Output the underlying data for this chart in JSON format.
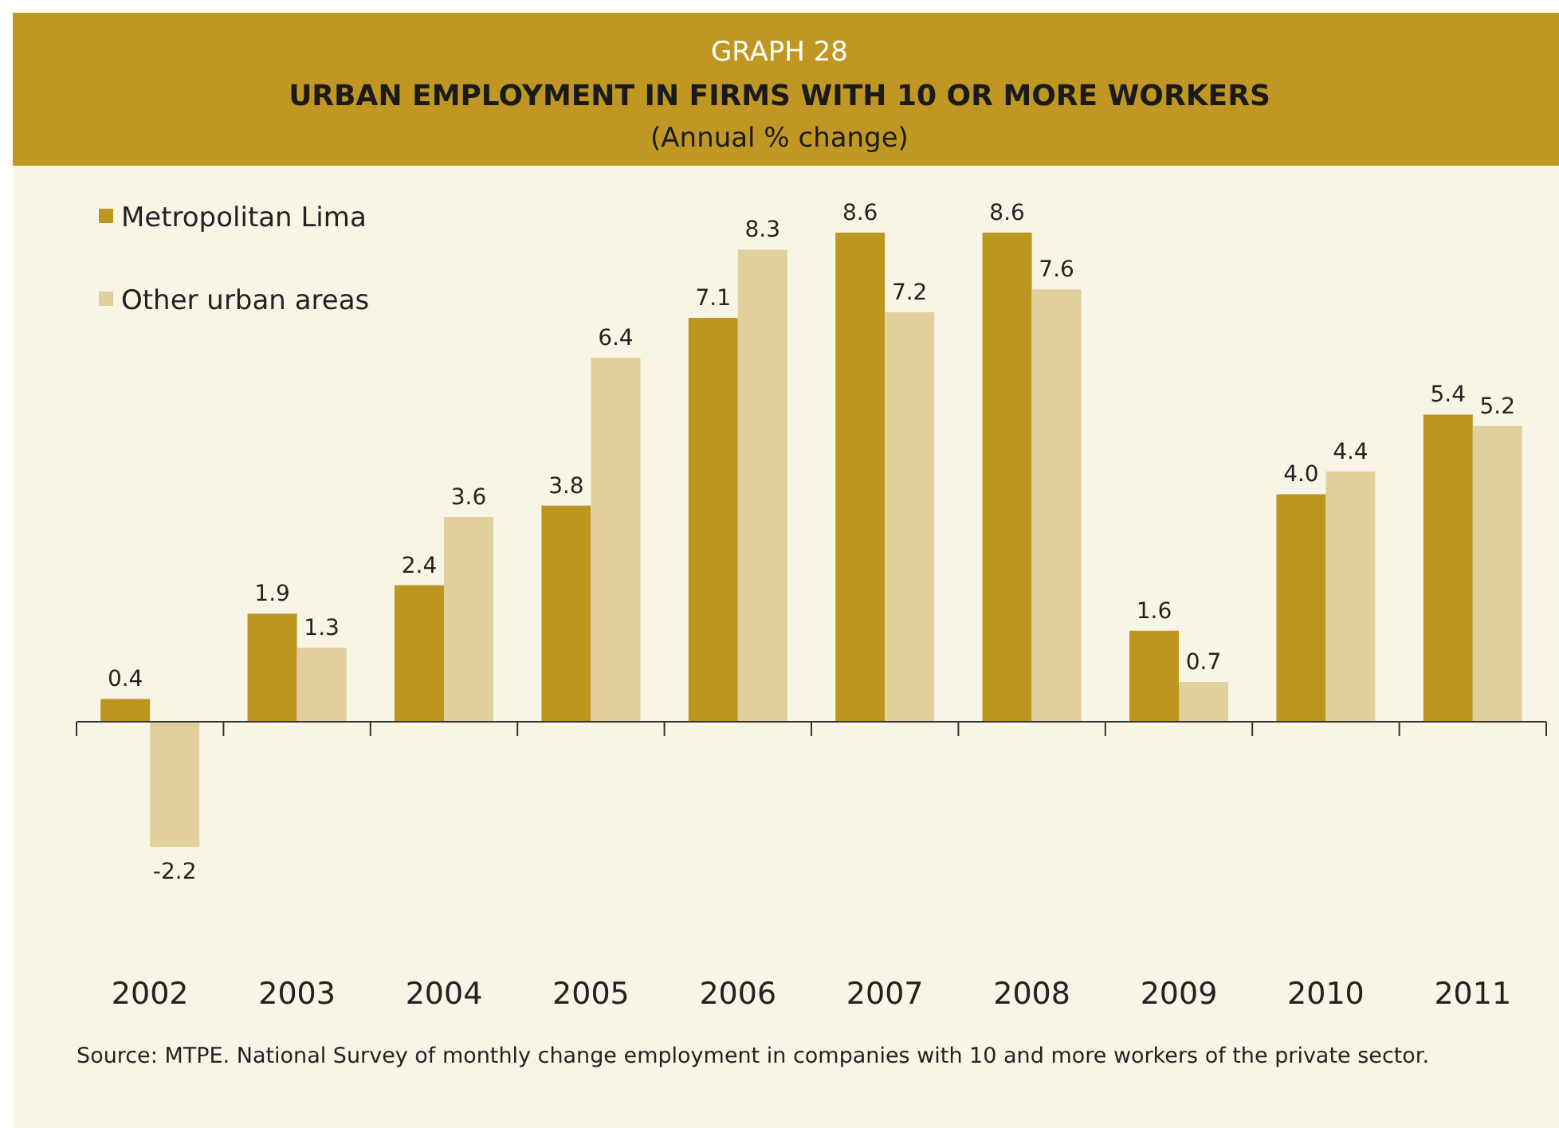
{
  "chart_data": {
    "type": "bar",
    "title": "URBAN EMPLOYMENT IN FIRMS WITH 10 OR MORE WORKERS",
    "subtitle": "(Annual % change)",
    "annotations": [
      "GRAPH 28",
      "Source: MTPE. National Survey of monthly change employment in companies with 10 and more workers of the private sector."
    ],
    "categories": [
      "2002",
      "2003",
      "2004",
      "2005",
      "2006",
      "2007",
      "2008",
      "2009",
      "2010",
      "2011"
    ],
    "series": [
      {
        "name": "Metropolitan Lima",
        "color": "#bd9620",
        "values": [
          0.4,
          1.9,
          2.4,
          3.8,
          7.1,
          8.6,
          8.6,
          1.6,
          4.0,
          5.4
        ],
        "value_labels": [
          "0.4",
          "1.9",
          "2.4",
          "3.8",
          "7.1",
          "8.6",
          "8.6",
          "1.6",
          "4.0",
          "5.4"
        ]
      },
      {
        "name": "Other urban areas",
        "color": "#e2d09c",
        "values": [
          -2.2,
          1.3,
          3.6,
          6.4,
          8.3,
          7.2,
          7.6,
          0.7,
          4.4,
          5.2
        ],
        "value_labels": [
          "-2.2",
          "1.3",
          "3.6",
          "6.4",
          "8.3",
          "7.2",
          "7.6",
          "0.7",
          "4.4",
          "5.2"
        ]
      }
    ],
    "legend": "top left"
  }
}
